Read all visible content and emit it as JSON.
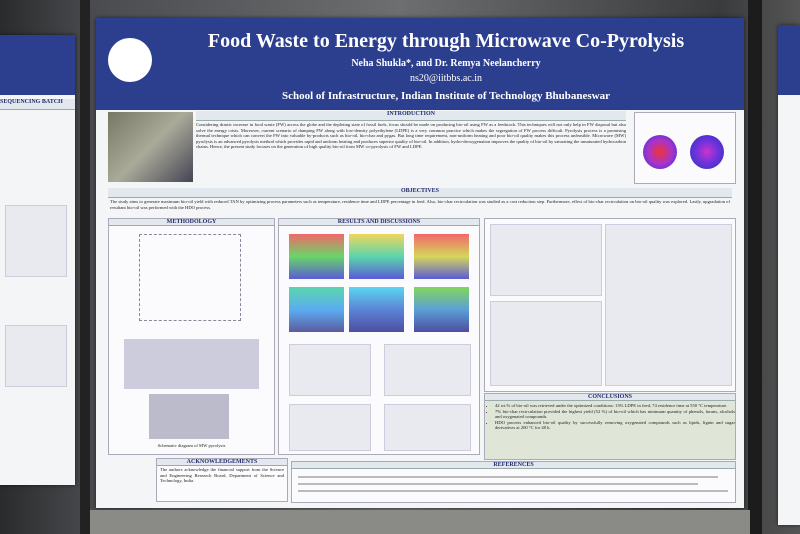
{
  "poster": {
    "title": "Food Waste to Energy through Microwave Co-Pyrolysis",
    "authors": "Neha Shukla*, and Dr. Remya Neelancherry",
    "email": "ns20@iitbbs.ac.in",
    "affiliation": "School of Infrastructure, Indian Institute of Technology Bhubaneswar",
    "sections": {
      "introduction": {
        "heading": "INTRODUCTION",
        "text": "Considering drastic increase in food waste (FW) across the globe and the depleting state of fossil fuels, focus should be made on producing bio-oil using FW as a feedstock. This techniques will not only help in FW disposal but also solve the energy crisis. Moreover, current scenario of dumping FW along with low-density polyethylene (LDPE) is a very common practice which makes the segregation of FW process difficult. Pyrolysis process is a promising thermal technique which can convert the FW into valuable by-products such as bio-oil, bio-char and pygas. But long time requirement, non-uniform heating and poor bio-oil quality makes this process unfeasible. Microwave (MW) pyrolysis is an advanced pyrolysis method which provides rapid and uniform heating and produces superior quality of bio-oil. In addition, hydro-deoxygenation improves the quality of bio-oil by saturating the unsaturated hydrocarbon chains. Hence, the present study focuses on the generation of high quality bio-oil from MW co-pyrolysis of FW and LDPE."
      },
      "objectives": {
        "heading": "OBJECTIVES",
        "text": "The study aims to generate maximum bio-oil yield with reduced TAN by optimizing process parameters such as temperature, residence time and LDPE percentage in feed. Also, bio-char recirculation was studied as a cost reduction step. Furthermore, effect of bio-char recirculation on bio-oil quality was explored. Lastly, upgradation of resultant bio-oil was performed with the HDO process."
      },
      "methodology": {
        "heading": "METHODOLOGY",
        "caption": "Schematic diagram of MW pyrolysis"
      },
      "results": {
        "heading": "RESULTS AND DISCUSSIONS"
      },
      "acknowledgements": {
        "heading": "ACKNOWLEDGEMENTS",
        "text": "The authors acknowledge the financial support from the Science and Engineering Research Board, Department of Science and Technology, India."
      },
      "conclusions": {
        "heading": "CONCLUSIONS",
        "bullets": [
          "42 wt.% of bio-oil was retrieved under the optimized conditions: 13% LDPE in feed, 74 residence time at 550 °C temperature.",
          "7% bio-char recirculation provided the highest yield (52 %) of bio-oil which has minimum quantity of phenols, furans, alcohols and oxygenated compounds.",
          "HDO process enhanced bio-oil quality by successfully removing oxygenated compounds such as lipids, lignin and sugar derivatives at 200 °C for 48 h."
        ]
      },
      "references": {
        "heading": "REFERENCES"
      }
    }
  },
  "left_poster": {
    "heading": "SEQUENCING BATCH"
  }
}
